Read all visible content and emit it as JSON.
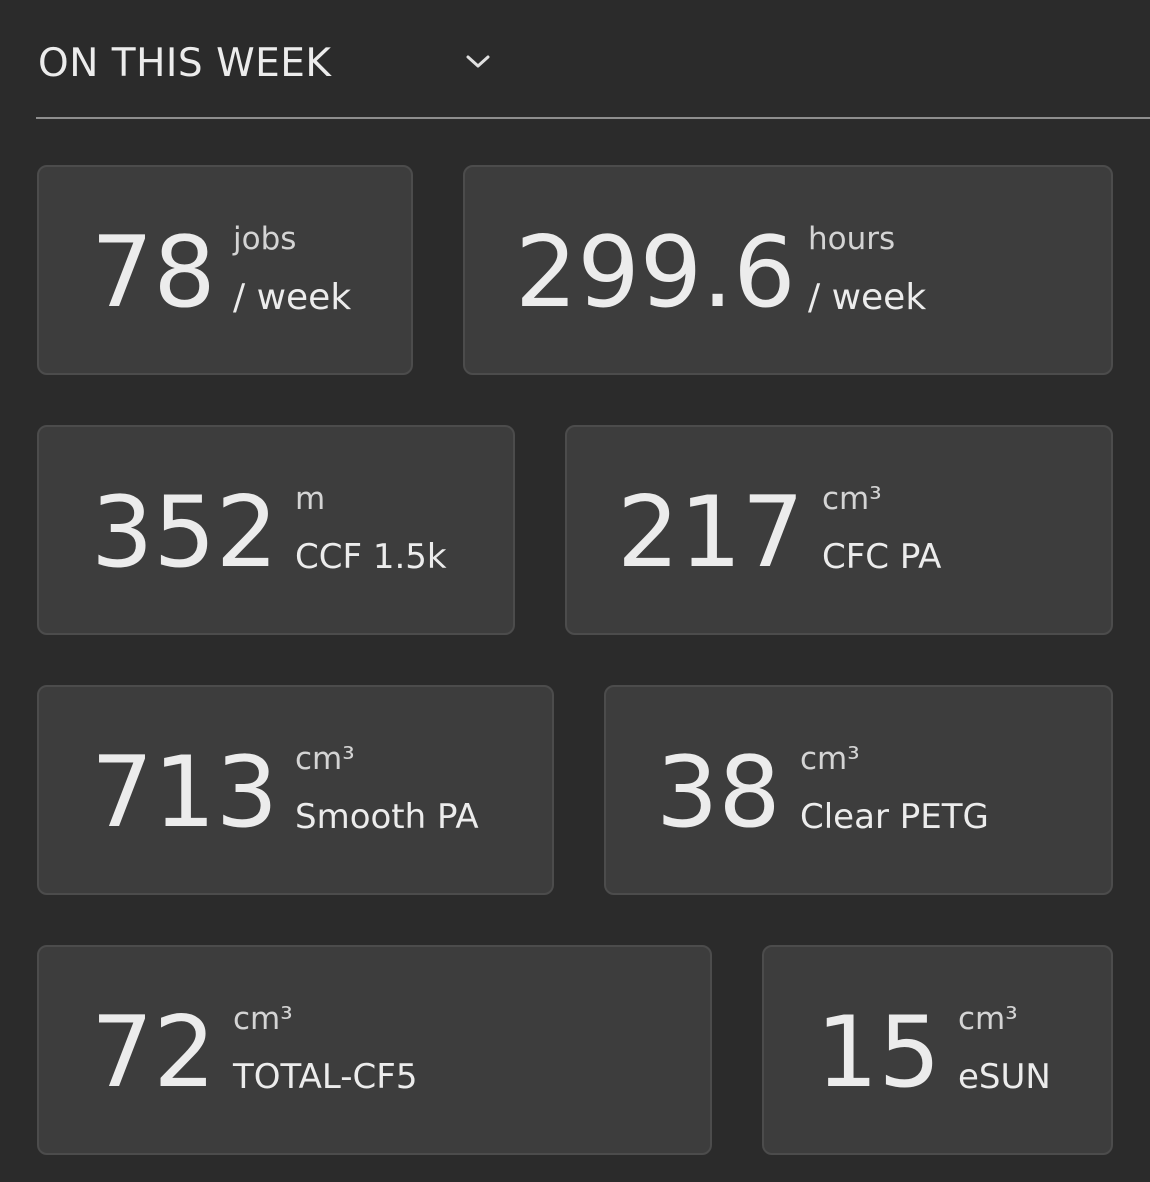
{
  "header": {
    "title": "ON THIS WEEK",
    "dropdown_icon": "chevron-down-icon"
  },
  "stats": [
    {
      "value": "78",
      "unit": "jobs",
      "label": "/ week"
    },
    {
      "value": "299.6",
      "unit": "hours",
      "label": "/ week"
    },
    {
      "value": "352",
      "unit": "m",
      "label": "CCF 1.5k"
    },
    {
      "value": "217",
      "unit": "cm³",
      "label": "CFC PA"
    },
    {
      "value": "713",
      "unit": "cm³",
      "label": "Smooth PA"
    },
    {
      "value": "38",
      "unit": "cm³",
      "label": "Clear PETG"
    },
    {
      "value": "72",
      "unit": "cm³",
      "label": "TOTAL-CF5"
    },
    {
      "value": "15",
      "unit": "cm³",
      "label": "eSUN"
    }
  ]
}
